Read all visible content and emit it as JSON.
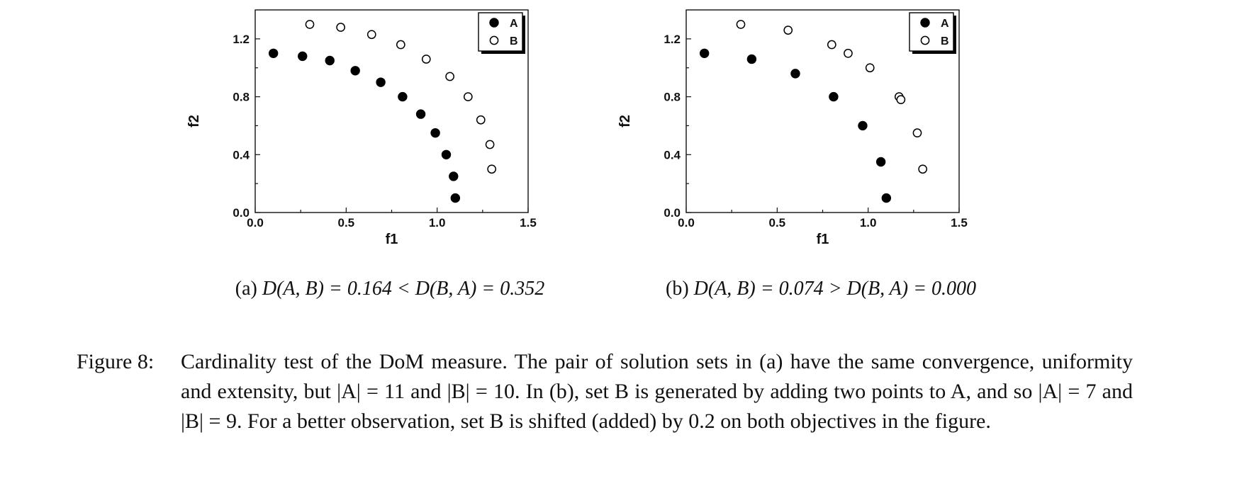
{
  "chart_data": [
    {
      "type": "scatter",
      "xlabel": "f1",
      "ylabel": "f2",
      "xlim": [
        0.0,
        1.5
      ],
      "ylim": [
        0.0,
        1.4
      ],
      "xticks": [
        "0.0",
        "0.5",
        "1.0",
        "1.5"
      ],
      "yticks": [
        "0.0",
        "0.4",
        "0.8",
        "1.2"
      ],
      "xtick_values": [
        0.0,
        0.5,
        1.0,
        1.5
      ],
      "ytick_values": [
        0.0,
        0.4,
        0.8,
        1.2
      ],
      "legend_position": "top-right",
      "series": [
        {
          "name": "A",
          "marker": "filled-circle",
          "points": [
            [
              0.1,
              1.1
            ],
            [
              0.26,
              1.08
            ],
            [
              0.41,
              1.05
            ],
            [
              0.55,
              0.98
            ],
            [
              0.69,
              0.9
            ],
            [
              0.81,
              0.8
            ],
            [
              0.91,
              0.68
            ],
            [
              0.99,
              0.55
            ],
            [
              1.05,
              0.4
            ],
            [
              1.09,
              0.25
            ],
            [
              1.1,
              0.1
            ]
          ]
        },
        {
          "name": "B",
          "marker": "open-circle",
          "points": [
            [
              0.3,
              1.3
            ],
            [
              0.47,
              1.28
            ],
            [
              0.64,
              1.23
            ],
            [
              0.8,
              1.16
            ],
            [
              0.94,
              1.06
            ],
            [
              1.07,
              0.94
            ],
            [
              1.17,
              0.8
            ],
            [
              1.24,
              0.64
            ],
            [
              1.29,
              0.47
            ],
            [
              1.3,
              0.3
            ]
          ]
        }
      ]
    },
    {
      "type": "scatter",
      "xlabel": "f1",
      "ylabel": "f2",
      "xlim": [
        0.0,
        1.5
      ],
      "ylim": [
        0.0,
        1.4
      ],
      "xticks": [
        "0.0",
        "0.5",
        "1.0",
        "1.5"
      ],
      "yticks": [
        "0.0",
        "0.4",
        "0.8",
        "1.2"
      ],
      "xtick_values": [
        0.0,
        0.5,
        1.0,
        1.5
      ],
      "ytick_values": [
        0.0,
        0.4,
        0.8,
        1.2
      ],
      "legend_position": "top-right",
      "series": [
        {
          "name": "A",
          "marker": "filled-circle",
          "points": [
            [
              0.1,
              1.1
            ],
            [
              0.36,
              1.06
            ],
            [
              0.6,
              0.96
            ],
            [
              0.81,
              0.8
            ],
            [
              0.97,
              0.6
            ],
            [
              1.07,
              0.35
            ],
            [
              1.1,
              0.1
            ]
          ]
        },
        {
          "name": "B",
          "marker": "open-circle",
          "points": [
            [
              0.3,
              1.3
            ],
            [
              0.56,
              1.26
            ],
            [
              0.8,
              1.16
            ],
            [
              0.89,
              1.1
            ],
            [
              1.01,
              1.0
            ],
            [
              1.17,
              0.8
            ],
            [
              1.18,
              0.78
            ],
            [
              1.27,
              0.55
            ],
            [
              1.3,
              0.3
            ]
          ]
        }
      ]
    }
  ],
  "subcaptions": {
    "a": {
      "label": "(a)",
      "expr": "D(A, B) = 0.164 < D(B, A) = 0.352"
    },
    "b": {
      "label": "(b)",
      "expr": "D(A, B) = 0.074 > D(B, A) = 0.000"
    }
  },
  "caption": {
    "label": "Figure 8:",
    "text": "Cardinality test of the DoM measure. The pair of solution sets in (a) have the same convergence, uniformity and extensity, but |A| = 11 and |B| = 10. In (b), set B is generated by adding two points to A, and so |A| = 7 and |B| = 9. For a better observation, set B is shifted (added) by 0.2 on both objectives in the figure."
  }
}
